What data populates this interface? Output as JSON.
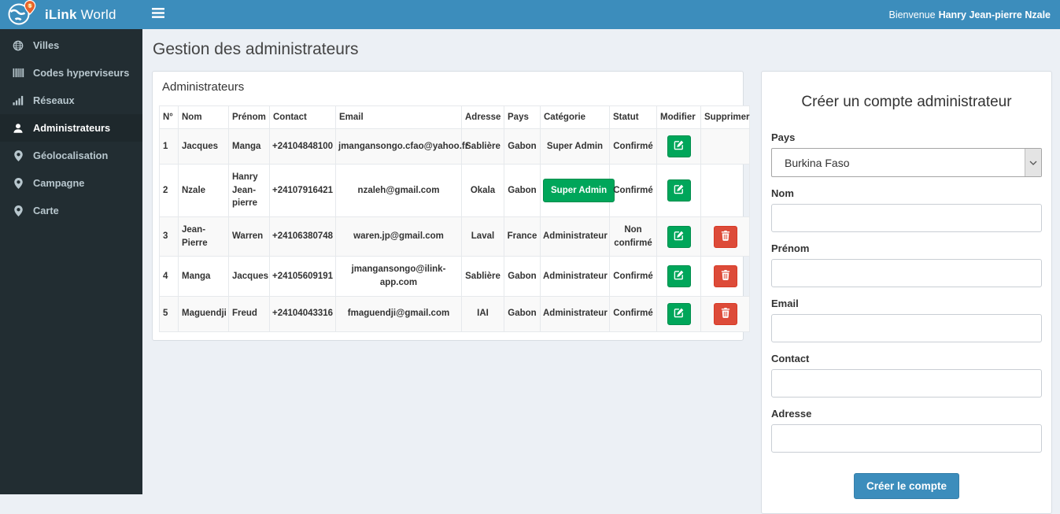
{
  "app": {
    "logo_bold": "iLink",
    "logo_rest": " World",
    "logo_icon": "globe-pin-icon"
  },
  "topbar": {
    "menu_icon": "bars-icon",
    "welcome_prefix": "Bienvenue",
    "welcome_name": "Hanry Jean-pierre Nzale"
  },
  "sidebar": {
    "items": [
      {
        "label": "Villes",
        "icon": "globe-icon",
        "active": false
      },
      {
        "label": "Codes hyperviseurs",
        "icon": "barcode-icon",
        "active": false
      },
      {
        "label": "Réseaux",
        "icon": "signal-icon",
        "active": false
      },
      {
        "label": "Administrateurs",
        "icon": "user-icon",
        "active": true
      },
      {
        "label": "Géolocalisation",
        "icon": "map-marker-icon",
        "active": false
      },
      {
        "label": "Campagne",
        "icon": "map-marker-icon",
        "active": false
      },
      {
        "label": "Carte",
        "icon": "map-marker-icon",
        "active": false
      }
    ]
  },
  "page": {
    "title": "Gestion des administrateurs"
  },
  "table_panel": {
    "title": "Administrateurs",
    "columns": [
      "N°",
      "Nom",
      "Prénom",
      "Contact",
      "Email",
      "Adresse",
      "Pays",
      "Catégorie",
      "Statut",
      "Modifier",
      "Supprimer"
    ],
    "action_icons": {
      "modify": "edit-icon",
      "delete": "trash-icon"
    },
    "rows": [
      {
        "num": "1",
        "nom": "Jacques",
        "prenom": "Manga",
        "contact": "+24104848100",
        "email": "jmangansongo.cfao@yahoo.fr",
        "adresse": "Sablière",
        "pays": "Gabon",
        "categorie": "Super Admin",
        "categorie_style": "text",
        "statut": "Confirmé",
        "can_delete": false
      },
      {
        "num": "2",
        "nom": "Nzale",
        "prenom": "Hanry Jean-pierre",
        "contact": "+24107916421",
        "email": "nzaleh@gmail.com",
        "adresse": "Okala",
        "pays": "Gabon",
        "categorie": "Super Admin",
        "categorie_style": "button",
        "statut": "Confirmé",
        "can_delete": false
      },
      {
        "num": "3",
        "nom": "Jean-Pierre",
        "prenom": "Warren",
        "contact": "+24106380748",
        "email": "waren.jp@gmail.com",
        "adresse": "Laval",
        "pays": "France",
        "categorie": "Administrateur",
        "categorie_style": "text",
        "statut": "Non confirmé",
        "can_delete": true
      },
      {
        "num": "4",
        "nom": "Manga",
        "prenom": "Jacques",
        "contact": "+24105609191",
        "email": "jmangansongo@ilink-app.com",
        "adresse": "Sablière",
        "pays": "Gabon",
        "categorie": "Administrateur",
        "categorie_style": "text",
        "statut": "Confirmé",
        "can_delete": true
      },
      {
        "num": "5",
        "nom": "Maguendji",
        "prenom": "Freud",
        "contact": "+24104043316",
        "email": "fmaguendji@gmail.com",
        "adresse": "IAI",
        "pays": "Gabon",
        "categorie": "Administrateur",
        "categorie_style": "text",
        "statut": "Confirmé",
        "can_delete": true
      }
    ]
  },
  "form": {
    "title": "Créer un compte administrateur",
    "select_arrow_icon": "chevron-down-icon",
    "fields": [
      {
        "label": "Pays",
        "type": "select",
        "value": "Burkina Faso"
      },
      {
        "label": "Nom",
        "type": "text",
        "value": "",
        "placeholder": ""
      },
      {
        "label": "Prénom",
        "type": "text",
        "value": "",
        "placeholder": ""
      },
      {
        "label": "Email",
        "type": "text",
        "value": "",
        "placeholder": ""
      },
      {
        "label": "Contact",
        "type": "text",
        "value": "",
        "placeholder": ""
      },
      {
        "label": "Adresse",
        "type": "text",
        "value": "",
        "placeholder": ""
      }
    ],
    "submit_label": "Créer le compte"
  },
  "colors": {
    "navbar_blue": "#3c8dbc",
    "sidebar_dark": "#222d32",
    "sidebar_active": "#1e282c",
    "sidebar_text": "#b8c7ce",
    "green": "#00a65a",
    "red": "#dd4b39",
    "content_bg": "#ecf0f5",
    "stripe": "#f9f9f9"
  }
}
